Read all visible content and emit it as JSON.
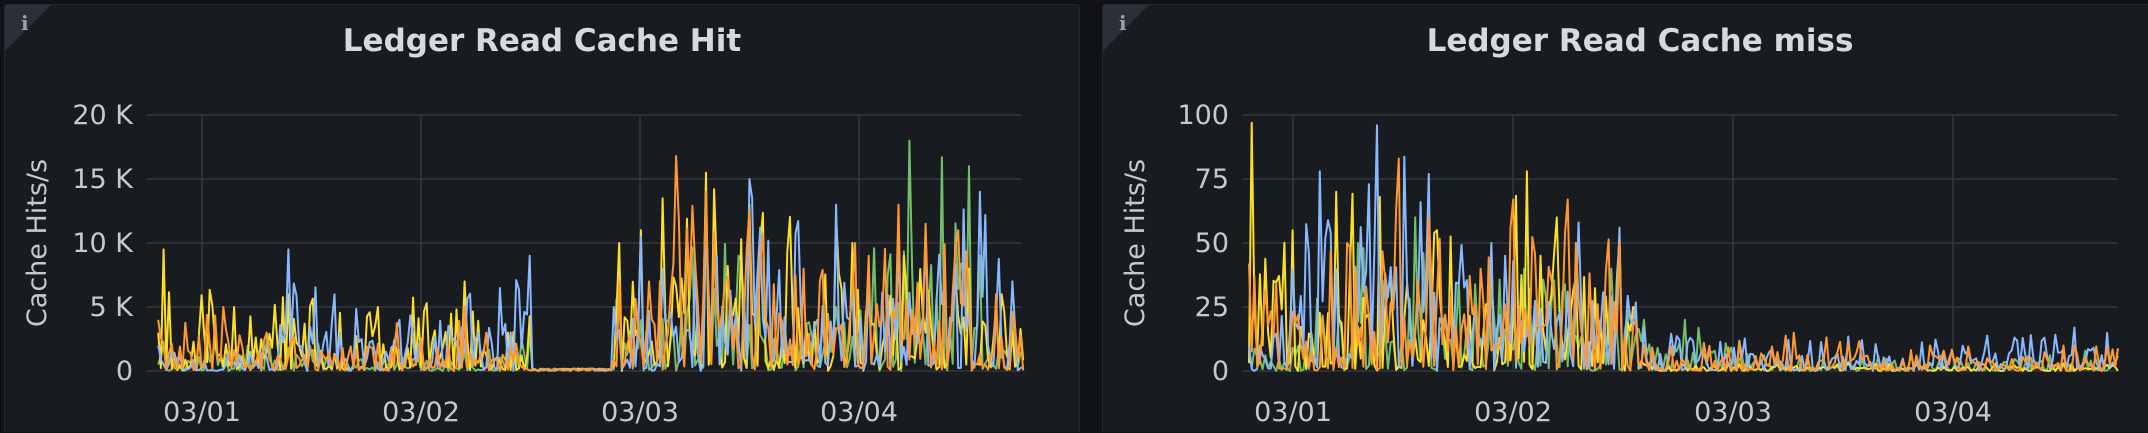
{
  "colors": {
    "background": "#111217",
    "panel": "#181b1f",
    "grid": "#34363c",
    "text": "#c7c8cc"
  },
  "panels": [
    {
      "info_icon": "info-icon",
      "title": "Ledger Read Cache Hit"
    },
    {
      "info_icon": "info-icon",
      "title": "Ledger Read Cache miss"
    }
  ],
  "chart_data": [
    {
      "type": "line",
      "title": "Ledger Read Cache Hit",
      "ylabel": "Cache Hits/s",
      "xlabel": "",
      "x_start": "02/28 ~21:40",
      "x_end": "03/04 ~23:00",
      "xticks": [
        {
          "label": "03/01",
          "day": 0
        },
        {
          "label": "03/02",
          "day": 1
        },
        {
          "label": "03/03",
          "day": 2
        },
        {
          "label": "03/04",
          "day": 3
        }
      ],
      "yticks": [
        {
          "label": "20 K",
          "value": 20000
        },
        {
          "label": "15 K",
          "value": 15000
        },
        {
          "label": "10 K",
          "value": 10000
        },
        {
          "label": "5 K",
          "value": 5000
        },
        {
          "label": "0",
          "value": 0
        }
      ],
      "ylim": [
        0,
        20000
      ],
      "grid": true,
      "legend": "none",
      "series": [
        {
          "color": "#73bf69",
          "peaks": [
            [
              -0.18,
              2000
            ],
            [
              0.3,
              2500
            ],
            [
              1.2,
              1500
            ],
            [
              1.5,
              3000
            ],
            [
              1.9,
              6000
            ],
            [
              2.3,
              12000
            ],
            [
              2.45,
              9000
            ],
            [
              2.9,
              5000
            ],
            [
              3.23,
              18000
            ],
            [
              3.5,
              16000
            ],
            [
              3.55,
              9000
            ],
            [
              3.7,
              4000
            ]
          ]
        },
        {
          "color": "#fade2a",
          "peaks": [
            [
              -0.2,
              3000
            ],
            [
              -0.18,
              9500
            ],
            [
              0.15,
              5000
            ],
            [
              0.4,
              6000
            ],
            [
              0.8,
              5000
            ],
            [
              1.2,
              7000
            ],
            [
              1.4,
              3000
            ],
            [
              1.9,
              10000
            ],
            [
              2.0,
              11000
            ],
            [
              2.1,
              13500
            ],
            [
              2.3,
              15500
            ],
            [
              2.5,
              13000
            ],
            [
              2.9,
              12000
            ],
            [
              3.2,
              9000
            ],
            [
              3.5,
              8000
            ],
            [
              3.65,
              6000
            ]
          ]
        },
        {
          "color": "#8ab8ff",
          "peaks": [
            [
              -0.2,
              2000
            ],
            [
              0.22,
              1500
            ],
            [
              0.4,
              9500
            ],
            [
              0.6,
              6000
            ],
            [
              0.9,
              4000
            ],
            [
              1.5,
              9000
            ],
            [
              1.88,
              5000
            ],
            [
              2.0,
              10500
            ],
            [
              2.1,
              8000
            ],
            [
              2.3,
              12000
            ],
            [
              2.35,
              9000
            ],
            [
              2.5,
              15000
            ],
            [
              3.3,
              11000
            ],
            [
              3.55,
              14000
            ],
            [
              3.7,
              7000
            ]
          ]
        },
        {
          "color": "#ff9830",
          "peaks": [
            [
              -0.2,
              4000
            ],
            [
              0.1,
              5000
            ],
            [
              0.3,
              3000
            ],
            [
              1.2,
              5000
            ],
            [
              1.3,
              3000
            ],
            [
              1.9,
              7000
            ],
            [
              2.04,
              7000
            ],
            [
              2.16,
              16800
            ],
            [
              2.3,
              14000
            ],
            [
              2.5,
              12500
            ],
            [
              2.75,
              8000
            ],
            [
              2.98,
              10000
            ],
            [
              3.05,
              9000
            ],
            [
              3.18,
              13000
            ],
            [
              3.45,
              11000
            ],
            [
              3.62,
              6000
            ]
          ]
        }
      ]
    },
    {
      "type": "line",
      "title": "Ledger Read Cache miss",
      "ylabel": "Cache Hits/s",
      "xlabel": "",
      "x_start": "02/28 ~21:40",
      "x_end": "03/04 ~23:00",
      "xticks": [
        {
          "label": "03/01",
          "day": 0
        },
        {
          "label": "03/02",
          "day": 1
        },
        {
          "label": "03/03",
          "day": 2
        },
        {
          "label": "03/04",
          "day": 3
        }
      ],
      "yticks": [
        {
          "label": "100",
          "value": 100
        },
        {
          "label": "75",
          "value": 75
        },
        {
          "label": "50",
          "value": 50
        },
        {
          "label": "25",
          "value": 25
        },
        {
          "label": "0",
          "value": 0
        }
      ],
      "ylim": [
        0,
        100
      ],
      "grid": true,
      "legend": "none",
      "series": [
        {
          "color": "#73bf69",
          "peaks": [
            [
              -0.2,
              8
            ],
            [
              0.3,
              50
            ],
            [
              0.55,
              60
            ],
            [
              0.75,
              35
            ],
            [
              1.05,
              40
            ],
            [
              1.45,
              40
            ],
            [
              1.6,
              20
            ],
            [
              1.78,
              20
            ],
            [
              2.2,
              5
            ],
            [
              3.6,
              8
            ]
          ]
        },
        {
          "color": "#fade2a",
          "peaks": [
            [
              -0.19,
              97
            ],
            [
              0.0,
              55
            ],
            [
              0.2,
              70
            ],
            [
              0.4,
              68
            ],
            [
              0.65,
              55
            ],
            [
              0.9,
              48
            ],
            [
              1.06,
              78
            ],
            [
              1.2,
              60
            ],
            [
              1.48,
              52
            ],
            [
              1.62,
              3
            ],
            [
              3.5,
              3
            ]
          ]
        },
        {
          "color": "#8ab8ff",
          "peaks": [
            [
              -0.2,
              10
            ],
            [
              0.12,
              78
            ],
            [
              0.38,
              96
            ],
            [
              0.62,
              77
            ],
            [
              0.9,
              50
            ],
            [
              1.3,
              58
            ],
            [
              1.48,
              56
            ],
            [
              1.6,
              17
            ],
            [
              1.8,
              13
            ],
            [
              3.55,
              17
            ]
          ]
        },
        {
          "color": "#ff9830",
          "peaks": [
            [
              -0.2,
              42
            ],
            [
              0.25,
              50
            ],
            [
              0.48,
              83
            ],
            [
              0.62,
              60
            ],
            [
              0.85,
              40
            ],
            [
              1.0,
              67
            ],
            [
              1.25,
              67
            ],
            [
              1.48,
              50
            ],
            [
              1.6,
              10
            ],
            [
              2.28,
              15
            ],
            [
              2.9,
              10
            ],
            [
              3.55,
              10
            ]
          ]
        }
      ]
    }
  ]
}
